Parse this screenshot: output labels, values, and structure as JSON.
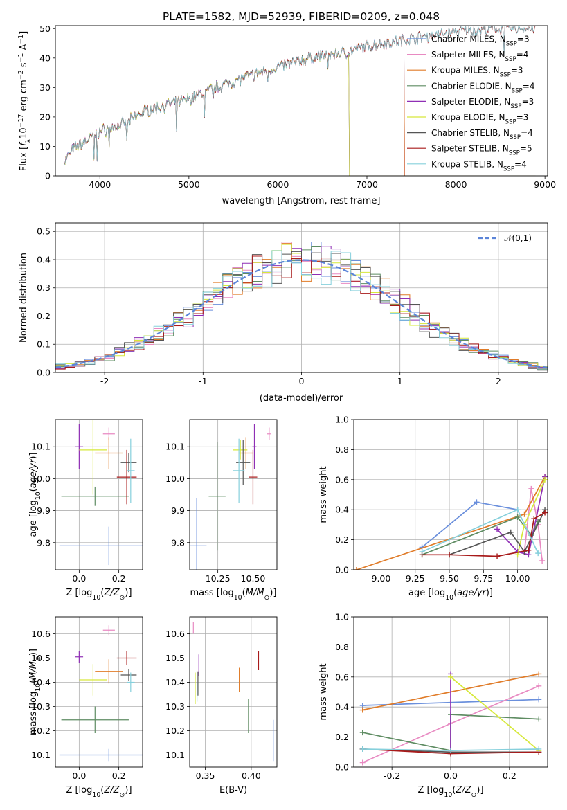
{
  "chart_data": [
    {
      "id": "spectrum",
      "type": "line",
      "title": "PLATE=1582, MJD=52939, FIBERID=0209, z=0.048",
      "xlabel": "wavelength [Angstrom, rest frame]",
      "ylabel": "Flux [f_λ 10^-17 erg cm^-2 s^-1 A^-1]",
      "xlim": [
        3500,
        9030
      ],
      "ylim": [
        0,
        51
      ],
      "xticks": [
        4000,
        5000,
        6000,
        7000,
        8000,
        9000
      ],
      "yticks": [
        0,
        10,
        20,
        30,
        40,
        50
      ],
      "legend_loc": "upper right",
      "series": [
        {
          "name": "Chabrier MILES, N_SSP=3",
          "color": "#6a8fdc",
          "end": 7420
        },
        {
          "name": "Salpeter MILES, N_SSP=4",
          "color": "#e88ac2",
          "end": 7420
        },
        {
          "name": "Kroupa MILES, N_SSP=3",
          "color": "#e07b28",
          "end": 7420
        },
        {
          "name": "Chabrier ELODIE, N_SSP=4",
          "color": "#5e8c62",
          "end": 6800
        },
        {
          "name": "Salpeter ELODIE, N_SSP=3",
          "color": "#8f2fb5",
          "end": 6800
        },
        {
          "name": "Kroupa ELODIE, N_SSP=3",
          "color": "#d6e83a",
          "end": 6800
        },
        {
          "name": "Chabrier STELIB, N_SSP=4",
          "color": "#555555",
          "end": 8900
        },
        {
          "name": "Salpeter STELIB, N_SSP=5",
          "color": "#a81a1a",
          "end": 8900
        },
        {
          "name": "Kroupa STELIB, N_SSP=4",
          "color": "#86d0dc",
          "end": 8900
        }
      ],
      "continuum": {
        "x": [
          3600,
          3700,
          3900,
          4000,
          4300,
          4500,
          5000,
          5300,
          5600,
          6000,
          6500,
          6800,
          7000,
          7400,
          8000,
          8500,
          8900
        ],
        "y": [
          5,
          9,
          13,
          15,
          18,
          22,
          26,
          30,
          33,
          37,
          41,
          42,
          44,
          46,
          49,
          50,
          50
        ]
      },
      "absorption_lines": [
        3934,
        3968,
        4102,
        4304,
        4861,
        5175,
        5270,
        5890,
        6563,
        8542
      ]
    },
    {
      "id": "residuals",
      "type": "line",
      "xlabel": "(data-model)/error",
      "ylabel": "Normed distribution",
      "xlim": [
        -2.5,
        2.5
      ],
      "ylim": [
        0,
        0.53
      ],
      "xticks": [
        -2,
        -1,
        0,
        1,
        2
      ],
      "yticks": [
        0.0,
        0.1,
        0.2,
        0.3,
        0.4,
        0.5
      ],
      "reference": {
        "name": "𝒩(0,1)",
        "mean": 0,
        "sigma": 1,
        "color": "#5b84d8"
      },
      "bin_edges_start": -2.5,
      "bin_width": 0.1,
      "bins": 50
    },
    {
      "id": "age-vs-Z",
      "type": "scatter",
      "xlabel": "Z [log10(Z/Z☉)]",
      "ylabel": "age [log10(age/yr)]",
      "xlim": [
        -0.12,
        0.32
      ],
      "ylim": [
        9.715,
        10.185
      ],
      "xticks": [
        0.0,
        0.2
      ],
      "yticks": [
        9.8,
        9.9,
        10.0,
        10.1
      ],
      "points": [
        {
          "model": "Chabrier MILES",
          "x": 0.15,
          "xerr": 0.25,
          "y": 9.79,
          "yerr": 0.06,
          "color": "#6a8fdc"
        },
        {
          "model": "Salpeter MILES",
          "x": 0.15,
          "xerr": 0.03,
          "y": 10.14,
          "yerr": 0.02,
          "color": "#e88ac2"
        },
        {
          "model": "Kroupa MILES",
          "x": 0.15,
          "xerr": 0.07,
          "y": 10.08,
          "yerr": 0.05,
          "color": "#e07b28"
        },
        {
          "model": "Chabrier ELODIE",
          "x": 0.08,
          "xerr": 0.17,
          "y": 9.945,
          "yerr": 0.03,
          "color": "#5e8c62"
        },
        {
          "model": "Salpeter ELODIE",
          "x": 0.0,
          "xerr": 0.02,
          "y": 10.1,
          "yerr": 0.07,
          "color": "#8f2fb5"
        },
        {
          "model": "Kroupa ELODIE",
          "x": 0.07,
          "xerr": 0.07,
          "y": 10.09,
          "yerr": 0.14,
          "color": "#d6e83a"
        },
        {
          "model": "Chabrier STELIB",
          "x": 0.25,
          "xerr": 0.04,
          "y": 10.05,
          "yerr": 0.03,
          "color": "#555555"
        },
        {
          "model": "Salpeter STELIB",
          "x": 0.24,
          "xerr": 0.05,
          "y": 10.005,
          "yerr": 0.085,
          "color": "#a81a1a"
        },
        {
          "model": "Kroupa STELIB",
          "x": 0.26,
          "xerr": 0.02,
          "y": 10.025,
          "yerr": 0.1,
          "color": "#86d0dc"
        }
      ]
    },
    {
      "id": "age-vs-mass",
      "type": "scatter",
      "xlabel": "mass [log10(M/M☉)]",
      "ylabel": "",
      "xlim": [
        10.05,
        10.67
      ],
      "ylim": [
        9.715,
        10.185
      ],
      "xticks": [
        10.25,
        10.5
      ],
      "yticks": [
        9.8,
        9.9,
        10.0,
        10.1
      ],
      "points": [
        {
          "model": "Chabrier MILES",
          "x": 10.1,
          "xerr": 0.07,
          "y": 9.79,
          "yerr": 0.15,
          "color": "#6a8fdc"
        },
        {
          "model": "Salpeter MILES",
          "x": 10.615,
          "xerr": 0.015,
          "y": 10.14,
          "yerr": 0.02,
          "color": "#e88ac2"
        },
        {
          "model": "Kroupa MILES",
          "x": 10.45,
          "xerr": 0.05,
          "y": 10.08,
          "yerr": 0.05,
          "color": "#e07b28"
        },
        {
          "model": "Chabrier ELODIE",
          "x": 10.245,
          "xerr": 0.06,
          "y": 9.945,
          "yerr": 0.17,
          "color": "#5e8c62"
        },
        {
          "model": "Salpeter ELODIE",
          "x": 10.51,
          "xerr": 0.015,
          "y": 10.1,
          "yerr": 0.07,
          "color": "#8f2fb5"
        },
        {
          "model": "Kroupa ELODIE",
          "x": 10.41,
          "xerr": 0.05,
          "y": 10.09,
          "yerr": 0.03,
          "color": "#d6e83a"
        },
        {
          "model": "Chabrier STELIB",
          "x": 10.43,
          "xerr": 0.05,
          "y": 10.05,
          "yerr": 0.07,
          "color": "#555555"
        },
        {
          "model": "Salpeter STELIB",
          "x": 10.5,
          "xerr": 0.03,
          "y": 10.005,
          "yerr": 0.085,
          "color": "#a81a1a"
        },
        {
          "model": "Kroupa STELIB",
          "x": 10.4,
          "xerr": 0.04,
          "y": 10.025,
          "yerr": 0.1,
          "color": "#86d0dc"
        }
      ]
    },
    {
      "id": "mass-vs-Z",
      "type": "scatter",
      "xlabel": "Z [log10(Z/Z☉)]",
      "ylabel": "mass [log10(M/M☉)]",
      "xlim": [
        -0.12,
        0.32
      ],
      "ylim": [
        10.05,
        10.67
      ],
      "xticks": [
        0.0,
        0.2
      ],
      "yticks": [
        10.1,
        10.2,
        10.3,
        10.4,
        10.5,
        10.6
      ],
      "points": [
        {
          "model": "Chabrier MILES",
          "x": 0.15,
          "xerr": 0.25,
          "y": 10.1,
          "yerr": 0.025,
          "color": "#6a8fdc"
        },
        {
          "model": "Salpeter MILES",
          "x": 0.15,
          "xerr": 0.03,
          "y": 10.615,
          "yerr": 0.02,
          "color": "#e88ac2"
        },
        {
          "model": "Kroupa MILES",
          "x": 0.15,
          "xerr": 0.07,
          "y": 10.445,
          "yerr": 0.05,
          "color": "#e07b28"
        },
        {
          "model": "Chabrier ELODIE",
          "x": 0.08,
          "xerr": 0.17,
          "y": 10.245,
          "yerr": 0.055,
          "color": "#5e8c62"
        },
        {
          "model": "Salpeter ELODIE",
          "x": 0.0,
          "xerr": 0.02,
          "y": 10.505,
          "yerr": 0.025,
          "color": "#8f2fb5"
        },
        {
          "model": "Kroupa ELODIE",
          "x": 0.07,
          "xerr": 0.07,
          "y": 10.41,
          "yerr": 0.065,
          "color": "#d6e83a"
        },
        {
          "model": "Chabrier STELIB",
          "x": 0.25,
          "xerr": 0.04,
          "y": 10.43,
          "yerr": 0.025,
          "color": "#555555"
        },
        {
          "model": "Salpeter STELIB",
          "x": 0.24,
          "xerr": 0.05,
          "y": 10.5,
          "yerr": 0.03,
          "color": "#a81a1a"
        },
        {
          "model": "Kroupa STELIB",
          "x": 0.26,
          "xerr": 0.02,
          "y": 10.4,
          "yerr": 0.04,
          "color": "#86d0dc"
        }
      ]
    },
    {
      "id": "mass-vs-ebv",
      "type": "scatter",
      "xlabel": "E(B-V)",
      "ylabel": "",
      "xlim": [
        0.333,
        0.428
      ],
      "ylim": [
        10.05,
        10.67
      ],
      "xticks": [
        0.35,
        0.4
      ],
      "yticks": [
        10.1,
        10.2,
        10.3,
        10.4,
        10.5,
        10.6
      ],
      "points": [
        {
          "model": "Chabrier MILES",
          "x": 0.424,
          "xerr": 0,
          "y": 10.16,
          "yerr": 0.085,
          "color": "#6a8fdc"
        },
        {
          "model": "Salpeter MILES",
          "x": 0.337,
          "xerr": 0,
          "y": 10.625,
          "yerr": 0.025,
          "color": "#e88ac2"
        },
        {
          "model": "Kroupa MILES",
          "x": 0.387,
          "xerr": 0,
          "y": 10.41,
          "yerr": 0.05,
          "color": "#e07b28"
        },
        {
          "model": "Chabrier ELODIE",
          "x": 0.397,
          "xerr": 0,
          "y": 10.26,
          "yerr": 0.07,
          "color": "#5e8c62"
        },
        {
          "model": "Salpeter ELODIE",
          "x": 0.343,
          "xerr": 0,
          "y": 10.47,
          "yerr": 0.045,
          "color": "#8f2fb5"
        },
        {
          "model": "Kroupa ELODIE",
          "x": 0.339,
          "xerr": 0,
          "y": 10.375,
          "yerr": 0.065,
          "color": "#d6e83a"
        },
        {
          "model": "Chabrier STELIB",
          "x": 0.342,
          "xerr": 0,
          "y": 10.395,
          "yerr": 0.05,
          "color": "#555555"
        },
        {
          "model": "Salpeter STELIB",
          "x": 0.408,
          "xerr": 0,
          "y": 10.49,
          "yerr": 0.04,
          "color": "#a81a1a"
        },
        {
          "model": "Kroupa STELIB",
          "x": 0.341,
          "xerr": 0,
          "y": 10.36,
          "yerr": 0.04,
          "color": "#86d0dc"
        }
      ]
    },
    {
      "id": "weight-vs-age",
      "type": "line",
      "xlabel": "age [log10(age/yr)]",
      "ylabel": "mass weight",
      "xlim": [
        8.8,
        10.22
      ],
      "ylim": [
        0,
        1
      ],
      "xticks": [
        9.0,
        9.25,
        9.5,
        9.75,
        10.0
      ],
      "yticks": [
        0.0,
        0.2,
        0.4,
        0.6,
        0.8,
        1.0
      ],
      "series": [
        {
          "model": "Chabrier MILES",
          "color": "#6a8fdc",
          "x": [
            9.3,
            9.7,
            10.0
          ],
          "y": [
            0.15,
            0.45,
            0.4
          ]
        },
        {
          "model": "Salpeter MILES",
          "color": "#e88ac2",
          "x": [
            10.05,
            10.1,
            10.15,
            10.18
          ],
          "y": [
            0.12,
            0.54,
            0.3,
            0.06
          ]
        },
        {
          "model": "Kroupa MILES",
          "color": "#e07b28",
          "x": [
            8.82,
            10.05,
            10.2
          ],
          "y": [
            0.0,
            0.37,
            0.62
          ]
        },
        {
          "model": "Chabrier ELODIE",
          "color": "#5e8c62",
          "x": [
            9.3,
            10.0,
            10.1,
            10.15
          ],
          "y": [
            0.1,
            0.35,
            0.23,
            0.32
          ]
        },
        {
          "model": "Salpeter ELODIE",
          "color": "#8f2fb5",
          "x": [
            9.85,
            10.0,
            10.08,
            10.2
          ],
          "y": [
            0.27,
            0.12,
            0.1,
            0.62
          ]
        },
        {
          "model": "Kroupa ELODIE",
          "color": "#d6e83a",
          "x": [
            10.0,
            10.05,
            10.2
          ],
          "y": [
            0.1,
            0.3,
            0.6
          ]
        },
        {
          "model": "Chabrier STELIB",
          "color": "#555555",
          "x": [
            9.5,
            9.95,
            10.05,
            10.2
          ],
          "y": [
            0.1,
            0.25,
            0.12,
            0.4
          ]
        },
        {
          "model": "Salpeter STELIB",
          "color": "#a81a1a",
          "x": [
            9.3,
            9.5,
            9.85,
            10.08,
            10.12,
            10.2
          ],
          "y": [
            0.1,
            0.1,
            0.09,
            0.13,
            0.34,
            0.38
          ]
        },
        {
          "model": "Kroupa STELIB",
          "color": "#86d0dc",
          "x": [
            9.3,
            10.0,
            10.15
          ],
          "y": [
            0.12,
            0.4,
            0.11
          ]
        }
      ]
    },
    {
      "id": "weight-vs-Z",
      "type": "line",
      "xlabel": "Z [log10(Z/Z☉)]",
      "ylabel": "mass weight",
      "xlim": [
        -0.33,
        0.33
      ],
      "ylim": [
        0,
        1
      ],
      "xticks": [
        -0.2,
        0.0,
        0.2
      ],
      "yticks": [
        0.0,
        0.2,
        0.4,
        0.6,
        0.8,
        1.0
      ],
      "series": [
        {
          "model": "Chabrier MILES",
          "color": "#6a8fdc",
          "x": [
            -0.3,
            0.3
          ],
          "y": [
            0.41,
            0.45
          ]
        },
        {
          "model": "Salpeter MILES",
          "color": "#e88ac2",
          "x": [
            -0.3,
            0.0,
            0.3
          ],
          "y": [
            0.03,
            0.29,
            0.54
          ]
        },
        {
          "model": "Kroupa MILES",
          "color": "#e07b28",
          "x": [
            -0.3,
            0.3
          ],
          "y": [
            0.38,
            0.62
          ]
        },
        {
          "model": "Chabrier ELODIE",
          "color": "#5e8c62",
          "x": [
            -0.3,
            0.0,
            0.0,
            0.3
          ],
          "y": [
            0.23,
            0.11,
            0.35,
            0.32
          ]
        },
        {
          "model": "Salpeter ELODIE",
          "color": "#8f2fb5",
          "x": [
            0.0,
            0.0
          ],
          "y": [
            0.1,
            0.62
          ]
        },
        {
          "model": "Kroupa ELODIE",
          "color": "#d6e83a",
          "x": [
            0.0,
            0.3
          ],
          "y": [
            0.6,
            0.11
          ]
        },
        {
          "model": "Chabrier STELIB",
          "color": "#555555",
          "x": [
            -0.3,
            0.0,
            0.3
          ],
          "y": [
            0.12,
            0.1,
            0.1
          ]
        },
        {
          "model": "Salpeter STELIB",
          "color": "#a81a1a",
          "x": [
            -0.3,
            0.0,
            0.3
          ],
          "y": [
            0.12,
            0.09,
            0.1
          ]
        },
        {
          "model": "Kroupa STELIB",
          "color": "#86d0dc",
          "x": [
            -0.3,
            0.0,
            0.3
          ],
          "y": [
            0.12,
            0.11,
            0.12
          ]
        }
      ]
    }
  ]
}
